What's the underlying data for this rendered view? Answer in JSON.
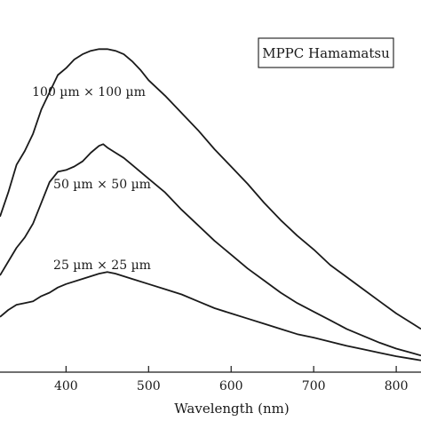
{
  "chart_data": {
    "type": "line",
    "title": "",
    "xlabel": "Wavelength (nm)",
    "ylabel": "",
    "xlim": [
      320,
      830
    ],
    "ylim": [
      0,
      1
    ],
    "grid": false,
    "xticks": [
      400,
      500,
      600,
      700,
      800
    ],
    "legend_box": "MPPC Hamamatsu",
    "series": [
      {
        "name": "100 µm × 100 µm",
        "x": [
          320,
          330,
          340,
          350,
          360,
          370,
          380,
          390,
          400,
          410,
          420,
          430,
          440,
          450,
          460,
          470,
          480,
          490,
          500,
          520,
          540,
          560,
          580,
          600,
          620,
          640,
          660,
          680,
          700,
          720,
          740,
          760,
          780,
          800,
          820,
          830
        ],
        "y": [
          0.45,
          0.52,
          0.6,
          0.64,
          0.69,
          0.76,
          0.81,
          0.86,
          0.88,
          0.905,
          0.92,
          0.93,
          0.935,
          0.935,
          0.93,
          0.92,
          0.9,
          0.875,
          0.845,
          0.8,
          0.75,
          0.7,
          0.645,
          0.595,
          0.545,
          0.49,
          0.44,
          0.395,
          0.355,
          0.31,
          0.275,
          0.24,
          0.205,
          0.17,
          0.14,
          0.125
        ]
      },
      {
        "name": "50 µm × 50 µm",
        "x": [
          320,
          330,
          340,
          350,
          360,
          370,
          380,
          390,
          400,
          410,
          420,
          430,
          440,
          445,
          450,
          460,
          470,
          480,
          500,
          520,
          540,
          560,
          580,
          600,
          620,
          640,
          660,
          680,
          700,
          720,
          740,
          760,
          780,
          800,
          820,
          830
        ],
        "y": [
          0.28,
          0.32,
          0.36,
          0.39,
          0.43,
          0.49,
          0.55,
          0.58,
          0.585,
          0.595,
          0.61,
          0.635,
          0.655,
          0.66,
          0.65,
          0.635,
          0.62,
          0.6,
          0.56,
          0.52,
          0.47,
          0.425,
          0.38,
          0.34,
          0.3,
          0.265,
          0.23,
          0.2,
          0.175,
          0.15,
          0.125,
          0.105,
          0.085,
          0.068,
          0.055,
          0.048
        ]
      },
      {
        "name": "25 µm × 25 µm",
        "x": [
          320,
          330,
          340,
          350,
          360,
          370,
          380,
          390,
          400,
          420,
          440,
          450,
          460,
          480,
          500,
          520,
          540,
          560,
          580,
          600,
          620,
          640,
          660,
          680,
          700,
          720,
          740,
          760,
          780,
          800,
          820,
          830
        ],
        "y": [
          0.16,
          0.18,
          0.195,
          0.2,
          0.205,
          0.22,
          0.23,
          0.245,
          0.255,
          0.27,
          0.285,
          0.29,
          0.285,
          0.27,
          0.255,
          0.24,
          0.225,
          0.205,
          0.185,
          0.17,
          0.155,
          0.14,
          0.125,
          0.11,
          0.1,
          0.088,
          0.076,
          0.066,
          0.056,
          0.046,
          0.038,
          0.034
        ]
      }
    ]
  }
}
